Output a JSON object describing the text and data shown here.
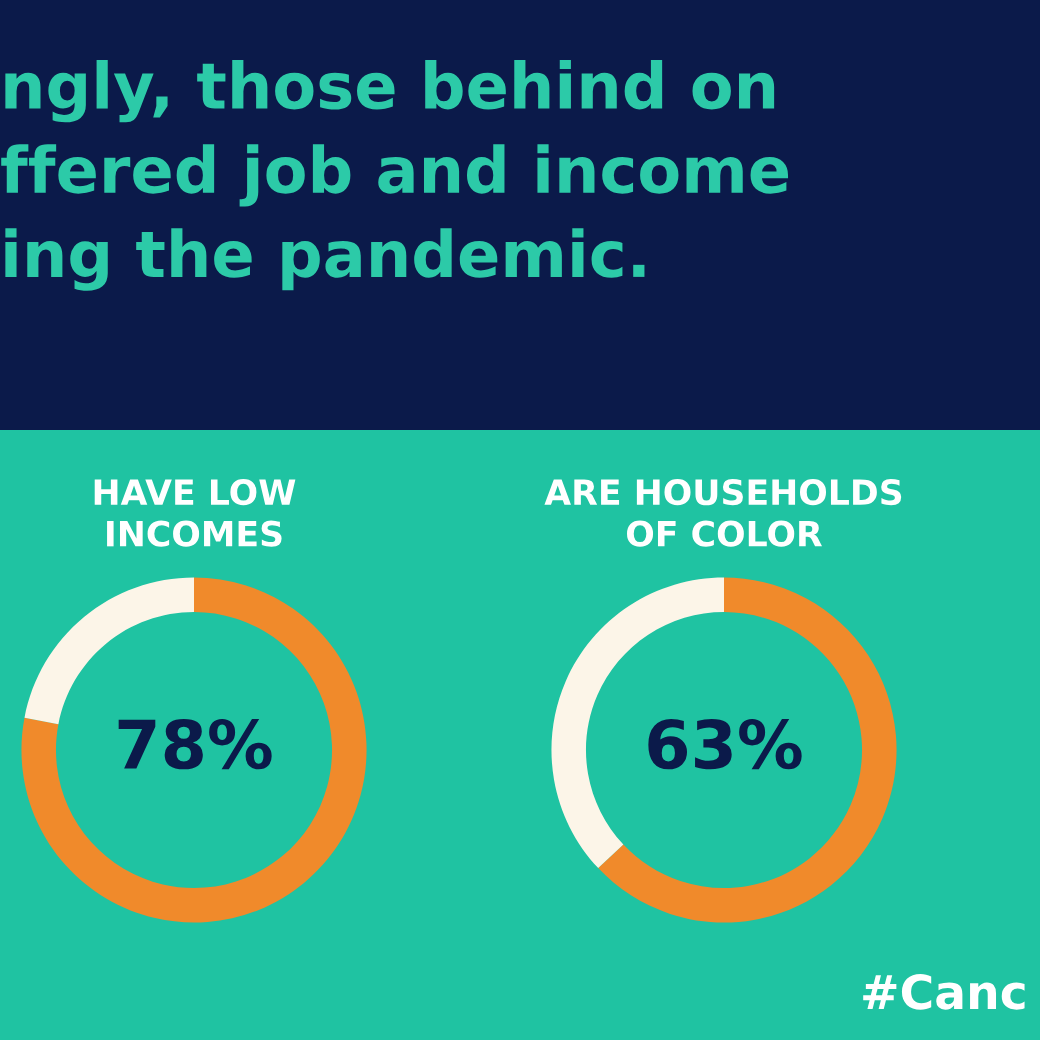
{
  "chart_data": [
    {
      "type": "other",
      "title": "ngly, those behind on\nffered job and income\ning the pandemic.",
      "annotations": [
        "#Canc"
      ]
    },
    {
      "type": "donut",
      "title": "HAVE LOW\nINCOMES",
      "categories": [
        null,
        null
      ],
      "values": [
        78,
        22
      ],
      "colors": [
        "#f08a2b",
        "#fcf5e8"
      ],
      "value_labels": [
        "78%",
        null
      ]
    },
    {
      "type": "donut",
      "title": "ARE HOUSEHOLDS\nOF COLOR",
      "categories": [
        null,
        null
      ],
      "values": [
        63,
        37
      ],
      "colors": [
        "#f08a2b",
        "#fcf5e8"
      ],
      "value_labels": [
        "63%",
        null
      ]
    }
  ]
}
